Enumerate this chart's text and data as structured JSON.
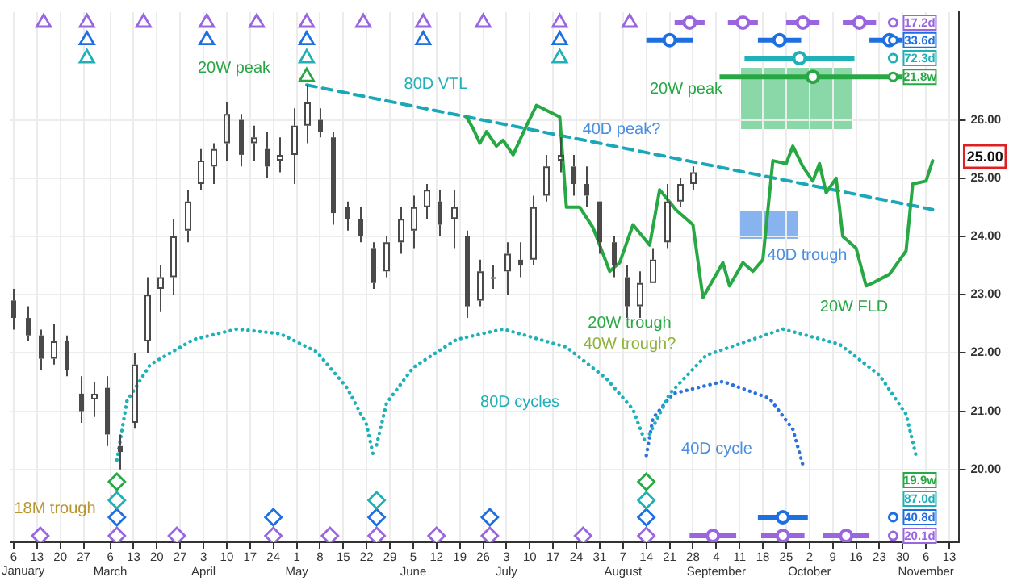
{
  "chart_data": {
    "type": "candlestick",
    "color": "#4a4a4a",
    "x": [
      "--02-06",
      "--02-10",
      "--02-14",
      "--02-18",
      "--02-22",
      "--02-26",
      "--03-01",
      "--03-05",
      "--03-09",
      "--03-13",
      "--03-17",
      "--03-21",
      "--03-25",
      "--03-29",
      "--04-02",
      "--04-06",
      "--04-10",
      "--04-14",
      "--04-18",
      "--04-22",
      "--04-26",
      "--04-30",
      "--05-04",
      "--05-08",
      "--05-12",
      "--05-16",
      "--05-20",
      "--05-24",
      "--05-28",
      "--06-01",
      "--06-05",
      "--06-09",
      "--06-13",
      "--06-17",
      "--06-21",
      "--06-25",
      "--06-29",
      "--07-03",
      "--07-07",
      "--07-11",
      "--07-15",
      "--07-19",
      "--07-23",
      "--07-27",
      "--07-31",
      "--08-04",
      "--08-08",
      "--08-12",
      "--08-16",
      "--08-20",
      "--08-24",
      "--08-28"
    ],
    "ohlc": [
      [
        22.9,
        23.1,
        22.4,
        22.6
      ],
      [
        22.6,
        22.8,
        22.2,
        22.3
      ],
      [
        22.3,
        22.4,
        21.7,
        21.9
      ],
      [
        21.9,
        22.5,
        21.8,
        22.2
      ],
      [
        22.2,
        22.3,
        21.6,
        21.7
      ],
      [
        21.3,
        21.6,
        20.8,
        21.0
      ],
      [
        21.2,
        21.5,
        20.9,
        21.3
      ],
      [
        21.4,
        21.6,
        20.4,
        20.6
      ],
      [
        20.4,
        20.6,
        20.0,
        20.3
      ],
      [
        20.8,
        22.0,
        20.7,
        21.8
      ],
      [
        22.2,
        23.3,
        22.0,
        23.0
      ],
      [
        23.1,
        23.5,
        22.7,
        23.3
      ],
      [
        23.3,
        24.3,
        23.0,
        24.0
      ],
      [
        24.1,
        24.8,
        23.9,
        24.6
      ],
      [
        24.9,
        25.5,
        24.8,
        25.3
      ],
      [
        25.2,
        25.6,
        24.9,
        25.5
      ],
      [
        25.6,
        26.3,
        25.3,
        26.1
      ],
      [
        26.0,
        26.1,
        25.2,
        25.4
      ],
      [
        25.6,
        25.9,
        25.3,
        25.7
      ],
      [
        25.5,
        25.8,
        25.0,
        25.2
      ],
      [
        25.3,
        25.7,
        25.1,
        25.4
      ],
      [
        25.4,
        26.2,
        24.9,
        25.9
      ],
      [
        25.9,
        26.6,
        25.6,
        26.3
      ],
      [
        26.0,
        26.2,
        25.7,
        25.8
      ],
      [
        25.7,
        25.8,
        24.2,
        24.4
      ],
      [
        24.5,
        24.6,
        24.1,
        24.3
      ],
      [
        24.3,
        24.5,
        23.9,
        24.0
      ],
      [
        23.8,
        23.9,
        23.1,
        23.2
      ],
      [
        23.4,
        24.0,
        23.3,
        23.9
      ],
      [
        23.9,
        24.5,
        23.7,
        24.3
      ],
      [
        24.1,
        24.7,
        23.8,
        24.5
      ],
      [
        24.5,
        24.9,
        24.3,
        24.8
      ],
      [
        24.6,
        24.8,
        24.0,
        24.2
      ],
      [
        24.3,
        24.8,
        23.8,
        24.5
      ],
      [
        24.0,
        24.1,
        22.6,
        22.8
      ],
      [
        22.9,
        23.6,
        22.8,
        23.4
      ],
      [
        23.3,
        23.5,
        23.1,
        23.3
      ],
      [
        23.4,
        23.9,
        23.0,
        23.7
      ],
      [
        23.6,
        23.9,
        23.3,
        23.5
      ],
      [
        23.6,
        24.7,
        23.5,
        24.5
      ],
      [
        24.7,
        25.4,
        24.6,
        25.2
      ],
      [
        25.3,
        25.7,
        25.1,
        25.4
      ],
      [
        25.2,
        25.4,
        24.7,
        24.9
      ],
      [
        24.9,
        25.2,
        24.5,
        24.7
      ],
      [
        24.6,
        24.6,
        23.7,
        23.9
      ],
      [
        23.9,
        24.0,
        23.3,
        23.5
      ],
      [
        23.3,
        23.5,
        22.6,
        22.8
      ],
      [
        22.8,
        23.4,
        22.6,
        23.2
      ],
      [
        23.2,
        23.8,
        23.2,
        23.6
      ],
      [
        23.9,
        24.9,
        23.8,
        24.6
      ],
      [
        24.6,
        25.0,
        24.5,
        24.9
      ],
      [
        24.9,
        25.2,
        24.8,
        25.1
      ]
    ],
    "series": [
      {
        "type": "line",
        "color": "#27a844",
        "line_style": "solid",
        "x": [
          "--06-21",
          "--06-23",
          "--06-25",
          "--06-27",
          "--06-30",
          "--07-02",
          "--07-05",
          "--07-09",
          "--07-12",
          "--07-19",
          "--07-21",
          "--07-25",
          "--07-29",
          "--08-03",
          "--08-06",
          "--08-10",
          "--08-15",
          "--08-18",
          "--08-23",
          "--08-28",
          "--08-31",
          "--09-06",
          "--09-08",
          "--09-12",
          "--09-15",
          "--09-18",
          "--09-21",
          "--09-25",
          "--09-27",
          "--09-30",
          "--10-03",
          "--10-05",
          "--10-07",
          "--10-10",
          "--10-12",
          "--10-16",
          "--10-19",
          "--10-21",
          "--10-26",
          "--10-31",
          "--11-02",
          "--11-06",
          "--11-08"
        ],
        "values": [
          26.05,
          25.85,
          25.6,
          25.8,
          25.55,
          25.65,
          25.4,
          25.9,
          26.25,
          26.05,
          24.5,
          24.5,
          24.15,
          23.4,
          23.55,
          24.2,
          23.85,
          24.8,
          24.45,
          24.2,
          22.95,
          23.55,
          23.15,
          23.55,
          23.4,
          23.6,
          25.3,
          25.25,
          25.55,
          25.2,
          24.95,
          25.25,
          24.75,
          25.0,
          24.0,
          23.8,
          23.15,
          23.2,
          23.35,
          23.75,
          24.9,
          24.95,
          25.3
        ]
      },
      {
        "type": "line",
        "color": "#1aa8b8",
        "line_style": "dashed",
        "x": [
          "--05-04",
          "--11-08"
        ],
        "values": [
          26.6,
          24.46
        ]
      },
      {
        "type": "line",
        "color": "#1fb0b8",
        "line_style": "dotted",
        "x": [
          "--03-08",
          "--03-11",
          "--03-18",
          "--03-31",
          "--04-13",
          "--04-26",
          "--05-07",
          "--05-16",
          "--05-22",
          "--05-24"
        ],
        "values": [
          20.16,
          21.17,
          21.8,
          22.23,
          22.41,
          22.33,
          22.02,
          21.41,
          20.77,
          20.24
        ]
      },
      {
        "type": "line",
        "color": "#1fb0b8",
        "line_style": "dotted",
        "x": [
          "--05-25",
          "--05-28",
          "--06-05",
          "--06-18",
          "--07-02",
          "--07-21",
          "--08-02",
          "--08-10",
          "--08-14"
        ],
        "values": [
          20.42,
          21.14,
          21.75,
          22.23,
          22.41,
          22.1,
          21.56,
          21.03,
          20.42
        ]
      },
      {
        "type": "line",
        "color": "#1fb0b8",
        "line_style": "dotted",
        "x": [
          "--08-15",
          "--08-21",
          "--09-01",
          "--09-24",
          "--10-11",
          "--10-23",
          "--10-31",
          "--11-03"
        ],
        "values": [
          20.61,
          21.3,
          21.96,
          22.41,
          22.15,
          21.62,
          20.95,
          20.24
        ]
      },
      {
        "type": "line",
        "color": "#2a72e0",
        "line_style": "dotted",
        "x": [
          "--08-14",
          "--08-16",
          "--08-22",
          "--09-06",
          "--09-20",
          "--09-27",
          "--09-30"
        ],
        "values": [
          20.24,
          20.88,
          21.3,
          21.51,
          21.22,
          20.69,
          20.08
        ]
      },
      {
        "type": "scatter",
        "marker": "triangle",
        "color": "#9966e0",
        "x": [
          "--02-15",
          "--02-28",
          "--03-16",
          "--04-04",
          "--04-19",
          "--05-04",
          "--05-21",
          "--06-08",
          "--06-26",
          "--07-19",
          "--08-09"
        ],
        "values": [
          27.67,
          27.67,
          27.67,
          27.67,
          27.67,
          27.67,
          27.67,
          27.67,
          27.67,
          27.67,
          27.67
        ]
      },
      {
        "type": "scatter",
        "marker": "triangle",
        "color": "#1e6fe0",
        "x": [
          "--02-28",
          "--04-04",
          "--05-04",
          "--06-08",
          "--07-19"
        ],
        "values": [
          27.37,
          27.37,
          27.37,
          27.37,
          27.37
        ]
      },
      {
        "type": "scatter",
        "marker": "triangle",
        "color": "#1fb0b8",
        "x": [
          "--02-28",
          "--05-04",
          "--07-19"
        ],
        "values": [
          27.06,
          27.06,
          27.06
        ]
      },
      {
        "type": "scatter",
        "marker": "triangle",
        "color": "#27a844",
        "x": [
          "--05-04"
        ],
        "values": [
          26.74
        ]
      },
      {
        "type": "scatter",
        "marker": "diamond",
        "color": "#27a844",
        "x": [
          "--03-08",
          "--08-14"
        ],
        "values": [
          19.79,
          19.79
        ]
      },
      {
        "type": "scatter",
        "marker": "diamond",
        "color": "#1fb0b8",
        "x": [
          "--03-08",
          "--05-25",
          "--08-14"
        ],
        "values": [
          19.47,
          19.47,
          19.47
        ]
      },
      {
        "type": "scatter",
        "marker": "diamond",
        "color": "#1e6fe0",
        "x": [
          "--03-08",
          "--04-24",
          "--05-25",
          "--06-28",
          "--08-14"
        ],
        "values": [
          19.18,
          19.18,
          19.18,
          19.18,
          19.18
        ]
      },
      {
        "type": "scatter",
        "marker": "diamond",
        "color": "#9966e0",
        "x": [
          "--02-14",
          "--03-08",
          "--03-26",
          "--04-24",
          "--05-11",
          "--05-25",
          "--06-12",
          "--06-28",
          "--07-26",
          "--08-14"
        ],
        "values": [
          18.86,
          18.86,
          18.86,
          18.86,
          18.86,
          18.86,
          18.86,
          18.86,
          18.86,
          18.86
        ]
      },
      {
        "type": "scatter",
        "marker": "circle",
        "name": "17.2d",
        "color": "#9966e0",
        "x": [
          "--08-27",
          "--09-12",
          "--09-30",
          "--10-17"
        ],
        "values": [
          27.67,
          27.67,
          27.67,
          27.67
        ],
        "xerrors": [
          4.5,
          4.5,
          5,
          5
        ]
      },
      {
        "type": "scatter",
        "marker": "circle",
        "name": "33.6d",
        "color": "#1e6fe0",
        "x": [
          "--08-21",
          "--09-23",
          "--10-26"
        ],
        "values": [
          27.37,
          27.37,
          27.37
        ],
        "xerrors": [
          7,
          6.5,
          6
        ]
      },
      {
        "type": "scatter",
        "marker": "circle",
        "name": "72.3d",
        "color": "#1fb0b8",
        "x": [
          "--09-29"
        ],
        "values": [
          27.06
        ],
        "xerrors": [
          16.5
        ]
      },
      {
        "type": "scatter",
        "marker": "circle",
        "name": "21.8w",
        "color": "#27a844",
        "x": [
          "--10-03"
        ],
        "values": [
          26.74
        ],
        "xerrors": [
          28
        ]
      },
      {
        "type": "scatter",
        "marker": "circle",
        "name": "40.8d",
        "color": "#1e6fe0",
        "x": [
          "--09-24"
        ],
        "values": [
          19.18
        ],
        "xerrors": [
          7.5
        ]
      },
      {
        "type": "scatter",
        "marker": "circle",
        "name": "20.1d",
        "color": "#9966e0",
        "x": [
          "--09-03",
          "--09-24",
          "--10-13"
        ],
        "values": [
          18.86,
          18.86,
          18.86
        ],
        "xerrors": [
          7,
          6.5,
          7
        ]
      }
    ],
    "legend": "right",
    "annotations": [
      "20W peak",
      "80D VTL",
      "40D peak?",
      "20W peak",
      "40D trough",
      "20W FLD",
      "20W trough",
      "40W trough?",
      "80D cycles",
      "40D cycle",
      "18M trough",
      "25.00",
      "19.9w",
      "87.0d",
      "January"
    ],
    "xlim": [
      "--02-05",
      "--11-16"
    ],
    "xticks": [
      {
        "value": "--02-06",
        "label": "6"
      },
      {
        "value": "--02-13",
        "label": "13"
      },
      {
        "value": "--02-20",
        "label": "20"
      },
      {
        "value": "--02-27",
        "label": "27"
      },
      {
        "value": "--03-06",
        "label": "6\nMarch"
      },
      {
        "value": "--03-13",
        "label": "13"
      },
      {
        "value": "--03-20",
        "label": "20"
      },
      {
        "value": "--03-27",
        "label": "27"
      },
      {
        "value": "--04-03",
        "label": "3\nApril"
      },
      {
        "value": "--04-10",
        "label": "10"
      },
      {
        "value": "--04-17",
        "label": "17"
      },
      {
        "value": "--04-24",
        "label": "24"
      },
      {
        "value": "--05-01",
        "label": "1\nMay"
      },
      {
        "value": "--05-08",
        "label": "8"
      },
      {
        "value": "--05-15",
        "label": "15"
      },
      {
        "value": "--05-22",
        "label": "22"
      },
      {
        "value": "--05-29",
        "label": "29"
      },
      {
        "value": "--06-05",
        "label": "5\nJune"
      },
      {
        "value": "--06-12",
        "label": "12"
      },
      {
        "value": "--06-19",
        "label": "19"
      },
      {
        "value": "--06-26",
        "label": "26"
      },
      {
        "value": "--07-03",
        "label": "3\nJuly"
      },
      {
        "value": "--07-10",
        "label": "10"
      },
      {
        "value": "--07-17",
        "label": "17"
      },
      {
        "value": "--07-24",
        "label": "24"
      },
      {
        "value": "--07-31",
        "label": "31"
      },
      {
        "value": "--08-07",
        "label": "7\nAugust"
      },
      {
        "value": "--08-14",
        "label": "14"
      },
      {
        "value": "--08-21",
        "label": "21"
      },
      {
        "value": "--08-28",
        "label": "28"
      },
      {
        "value": "--09-04",
        "label": "4\nSeptember"
      },
      {
        "value": "--09-11",
        "label": "11"
      },
      {
        "value": "--09-18",
        "label": "18"
      },
      {
        "value": "--09-25",
        "label": "25"
      },
      {
        "value": "--10-02",
        "label": "2\nOctober"
      },
      {
        "value": "--10-09",
        "label": "9"
      },
      {
        "value": "--10-16",
        "label": "16"
      },
      {
        "value": "--10-23",
        "label": "23"
      },
      {
        "value": "--10-30",
        "label": "30"
      },
      {
        "value": "--11-06",
        "label": "6\nNovember"
      },
      {
        "value": "--11-13",
        "label": "13"
      }
    ],
    "ylim": [
      18.75,
      27.85
    ],
    "yticks": [
      {
        "value": 20,
        "label": "20.00"
      },
      {
        "value": 21,
        "label": "21.00"
      },
      {
        "value": 22,
        "label": "22.00"
      },
      {
        "value": 23,
        "label": "23.00"
      },
      {
        "value": 24,
        "label": "24.00"
      },
      {
        "value": 25,
        "label": "25.00"
      },
      {
        "value": 26,
        "label": "26.00"
      }
    ],
    "grid": true
  }
}
